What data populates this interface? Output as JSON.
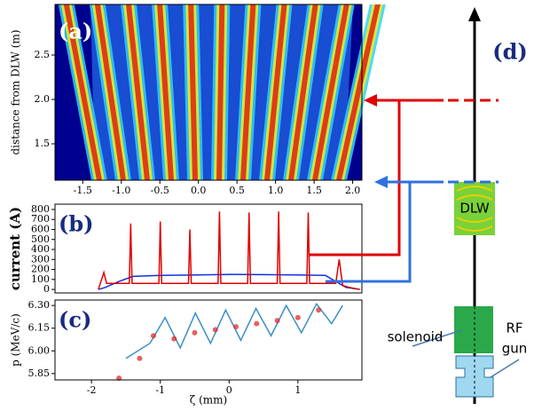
{
  "chart_data": [
    {
      "type": "heatmap",
      "label": "(a)",
      "ylabel": "distance from DLW (m)",
      "xlim": [
        -1.86,
        2.12
      ],
      "ylim": [
        1.09,
        3.07
      ],
      "xticks": [
        -1.5,
        {
          "value": -1,
          "label": "-1.0"
        },
        -0.5,
        {
          "value": 0,
          "label": "0.0"
        },
        0.5,
        {
          "value": 1,
          "label": "1.0"
        },
        1.5,
        {
          "value": 2,
          "label": "2.0"
        }
      ],
      "yticks": [
        1.5,
        {
          "value": 2,
          "label": "2.0"
        },
        2.5
      ]
    },
    {
      "type": "line",
      "label": "(b)",
      "ylabel": "current (A)",
      "xlim": [
        -2.53,
        1.93
      ],
      "ylim": [
        -35,
        853
      ],
      "yticks": [
        0,
        100,
        200,
        300,
        400,
        500,
        600,
        700,
        800
      ],
      "series": [
        {
          "color": "#1030e0",
          "x": [
            -1.9,
            -1.8,
            -1.6,
            -1.4,
            -1.0,
            -0.5,
            0,
            0.5,
            1.0,
            1.4,
            1.6,
            1.7,
            1.9
          ],
          "values": [
            0,
            20,
            80,
            130,
            140,
            145,
            150,
            148,
            145,
            140,
            60,
            20,
            0
          ]
        },
        {
          "color": "#e00000",
          "x": [
            -1.9,
            -1.82,
            -1.78,
            -1.45,
            -1.43,
            -1.41,
            -1.02,
            -1.0,
            -0.98,
            -0.59,
            -0.57,
            -0.55,
            -0.16,
            -0.14,
            -0.12,
            0.27,
            0.29,
            0.31,
            0.7,
            0.72,
            0.74,
            1.13,
            1.15,
            1.17,
            1.55,
            1.6,
            1.65,
            1.75,
            1.9
          ],
          "values": [
            0,
            170,
            60,
            60,
            660,
            60,
            60,
            680,
            60,
            60,
            600,
            60,
            60,
            780,
            60,
            60,
            770,
            60,
            60,
            780,
            60,
            60,
            770,
            60,
            60,
            300,
            40,
            20,
            0
          ]
        }
      ]
    },
    {
      "type": "scatter",
      "label": "(c)",
      "ylabel": "p (MeV/c)",
      "xlabel": "ζ (mm)",
      "xlim": [
        -2.53,
        1.93
      ],
      "ylim": [
        5.808,
        6.336
      ],
      "xticks": [
        -2,
        -1,
        0,
        1
      ],
      "yticks": [
        5.85,
        {
          "value": 6,
          "label": "6.00"
        },
        6.15,
        {
          "value": 6.3,
          "label": "6.30"
        }
      ],
      "series": [
        {
          "color": "#3a8fc8",
          "x": [
            -1.5,
            -1.15,
            -0.93,
            -0.71,
            -0.49,
            -0.27,
            -0.05,
            0.17,
            0.39,
            0.61,
            0.83,
            1.05,
            1.27,
            1.49,
            1.65
          ],
          "values": [
            5.95,
            6.05,
            6.22,
            6.02,
            6.25,
            6.05,
            6.27,
            6.07,
            6.28,
            6.1,
            6.3,
            6.12,
            6.31,
            6.18,
            6.3
          ]
        },
        {
          "color": "#d82020",
          "x": [
            -1.6,
            -1.3,
            -1.1,
            -0.8,
            -0.5,
            -0.2,
            0.1,
            0.4,
            0.7,
            1.0,
            1.3
          ],
          "values": [
            5.82,
            5.95,
            6.1,
            6.08,
            6.12,
            6.14,
            6.16,
            6.18,
            6.2,
            6.22,
            6.27
          ]
        }
      ]
    }
  ],
  "diagram": {
    "label": "(d)",
    "dlw": "DLW",
    "solenoid": "solenoid",
    "rf": "RF",
    "gun": "gun"
  }
}
